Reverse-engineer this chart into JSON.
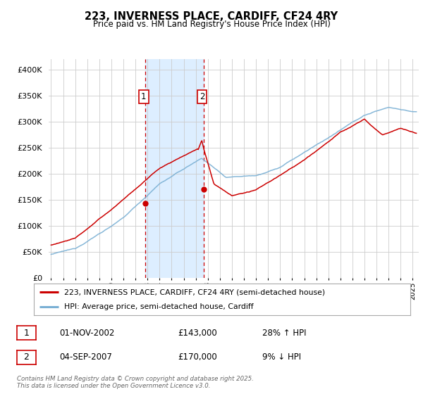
{
  "title": "223, INVERNESS PLACE, CARDIFF, CF24 4RY",
  "subtitle": "Price paid vs. HM Land Registry's House Price Index (HPI)",
  "ylim": [
    0,
    420000
  ],
  "xlim_start": 1994.8,
  "xlim_end": 2025.5,
  "sale1_date": 2002.833,
  "sale1_price": 143000,
  "sale2_date": 2007.67,
  "sale2_price": 170000,
  "shading_color": "#ddeeff",
  "vline_color": "#cc0000",
  "red_line_color": "#cc0000",
  "blue_line_color": "#7ab0d4",
  "legend_label1": "223, INVERNESS PLACE, CARDIFF, CF24 4RY (semi-detached house)",
  "legend_label2": "HPI: Average price, semi-detached house, Cardiff",
  "table_row1": [
    "1",
    "01-NOV-2002",
    "£143,000",
    "28% ↑ HPI"
  ],
  "table_row2": [
    "2",
    "04-SEP-2007",
    "£170,000",
    "9% ↓ HPI"
  ],
  "footnote": "Contains HM Land Registry data © Crown copyright and database right 2025.\nThis data is licensed under the Open Government Licence v3.0.",
  "background_color": "#ffffff",
  "grid_color": "#cccccc"
}
